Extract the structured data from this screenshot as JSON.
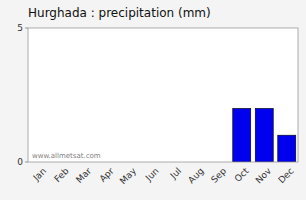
{
  "chart_data": {
    "type": "bar",
    "title": "Hurghada : precipitation (mm)",
    "categories": [
      "Jan",
      "Feb",
      "Mar",
      "Apr",
      "May",
      "Jun",
      "Jul",
      "Aug",
      "Sep",
      "Oct",
      "Nov",
      "Dec"
    ],
    "values": [
      0,
      0,
      0,
      0,
      0,
      0,
      0,
      0,
      0,
      2.0,
      2.0,
      1.0
    ],
    "color": "#0000EE",
    "ylim": [
      0,
      5
    ],
    "yticks": [
      0,
      5
    ],
    "grid": false,
    "annotations": [
      "www.allmetsat.com"
    ]
  }
}
